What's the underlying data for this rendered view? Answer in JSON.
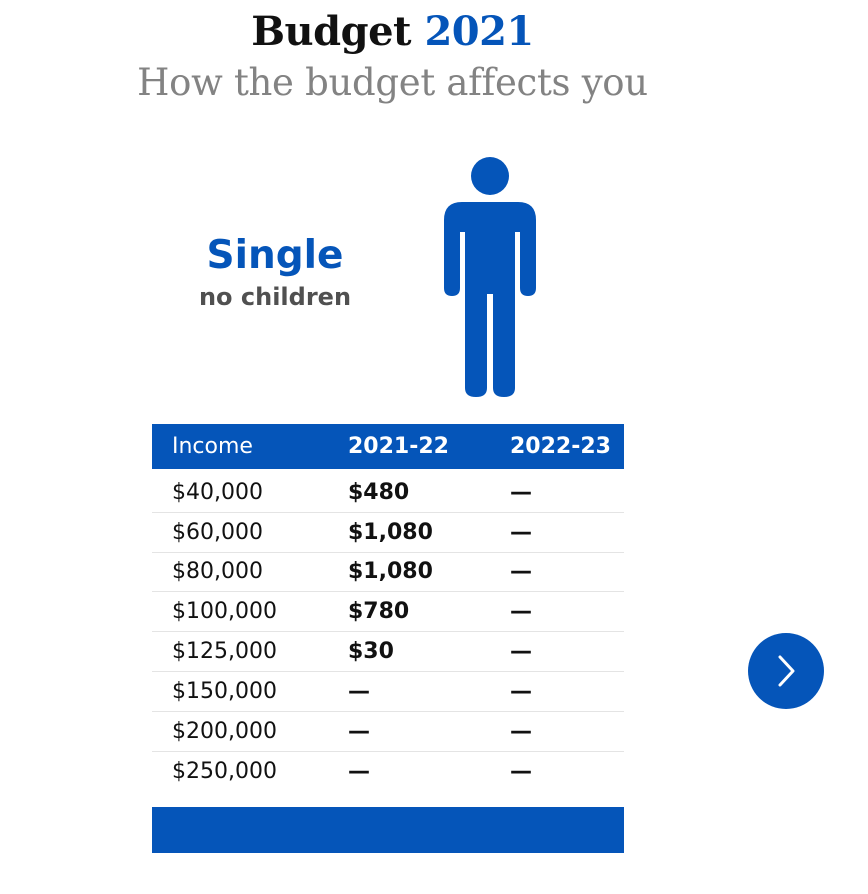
{
  "header": {
    "title_word": "Budget",
    "title_year": "2021",
    "subtitle": "How the budget affects you"
  },
  "household": {
    "title": "Single",
    "subtitle": "no children",
    "icon": "person-icon"
  },
  "table": {
    "columns": [
      "Income",
      "2021-22",
      "2022-23"
    ],
    "rows": [
      {
        "income": "$40,000",
        "y2021": "$480",
        "y2022": "—"
      },
      {
        "income": "$60,000",
        "y2021": "$1,080",
        "y2022": "—"
      },
      {
        "income": "$80,000",
        "y2021": "$1,080",
        "y2022": "—"
      },
      {
        "income": "$100,000",
        "y2021": "$780",
        "y2022": "—"
      },
      {
        "income": "$125,000",
        "y2021": "$30",
        "y2022": "—"
      },
      {
        "income": "$150,000",
        "y2021": "—",
        "y2022": "—"
      },
      {
        "income": "$200,000",
        "y2021": "—",
        "y2022": "—"
      },
      {
        "income": "$250,000",
        "y2021": "—",
        "y2022": "—"
      }
    ]
  },
  "navigation": {
    "next_icon": "chevron-right-icon"
  },
  "colors": {
    "accent": "#0555b9",
    "subtitle_gray": "#838383"
  }
}
